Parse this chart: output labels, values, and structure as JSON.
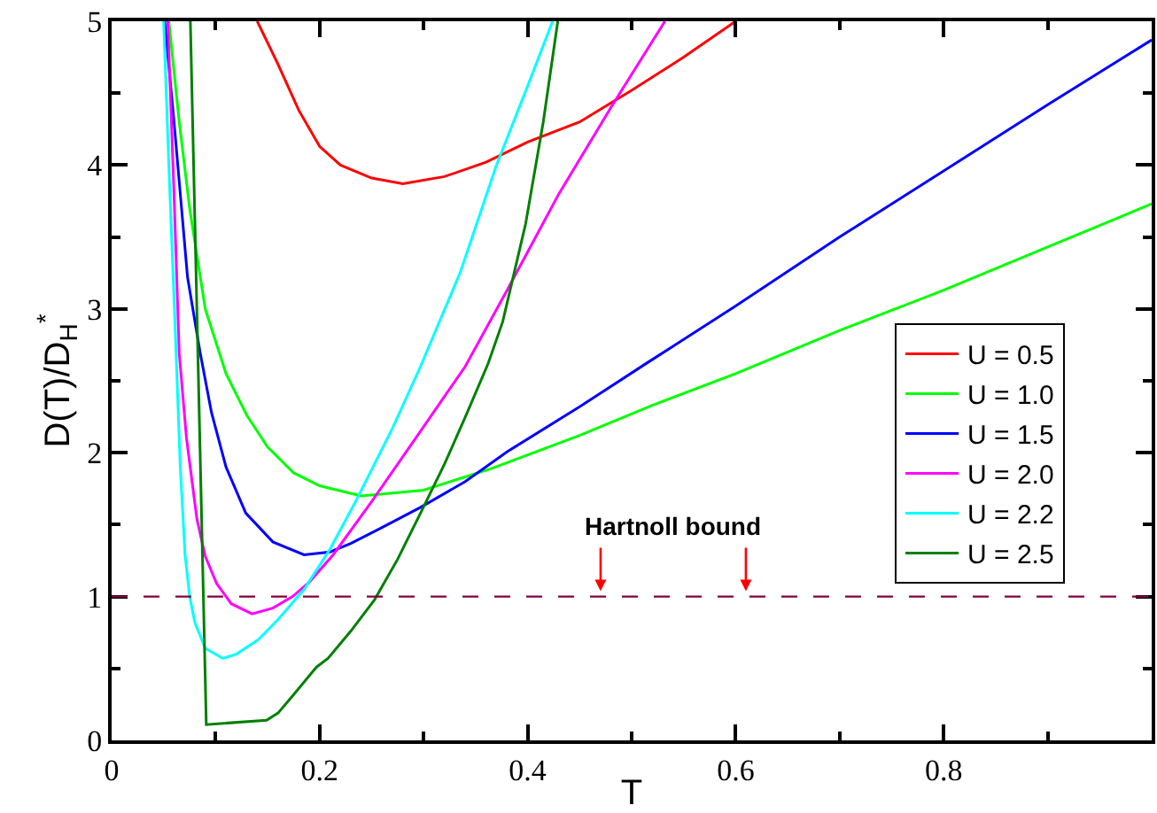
{
  "chart_data": {
    "type": "line",
    "xlabel": "T",
    "ylabel": "D(T)/D$_{H}$$^{*}$",
    "xlim": [
      0,
      1.0
    ],
    "ylim": [
      0,
      5
    ],
    "xticks": [
      0,
      {
        "value": 0.1,
        "label": null
      },
      0.2,
      {
        "value": 0.3,
        "label": null
      },
      0.4,
      {
        "value": 0.5,
        "label": null
      },
      0.6,
      {
        "value": 0.7,
        "label": null
      },
      0.8,
      {
        "value": 0.9,
        "label": null
      }
    ],
    "yticks": [
      0,
      {
        "value": 0.5,
        "label": null
      },
      1,
      {
        "value": 1.5,
        "label": null
      },
      2,
      {
        "value": 2.5,
        "label": null
      },
      3,
      {
        "value": 3.5,
        "label": null
      },
      4,
      {
        "value": 4.5,
        "label": null
      },
      5
    ],
    "grid": false,
    "legend": "right",
    "marker": "none",
    "line_style": "solid",
    "series": [
      {
        "name": "U = 0.5",
        "color": "#ff0000",
        "x": [
          0.14,
          0.16,
          0.18,
          0.2,
          0.22,
          0.25,
          0.28,
          0.32,
          0.36,
          0.4,
          0.45,
          0.5,
          0.55,
          0.6
        ],
        "values": [
          5,
          4.7,
          4.38,
          4.13,
          4.0,
          3.91,
          3.87,
          3.92,
          4.02,
          4.16,
          4.3,
          4.52,
          4.75,
          5.0
        ]
      },
      {
        "name": "U = 1.0",
        "color": "#00ff00",
        "x": [
          0.055,
          0.065,
          0.075,
          0.09,
          0.11,
          0.13,
          0.15,
          0.175,
          0.2,
          0.24,
          0.3,
          0.365,
          0.45,
          0.52,
          0.6,
          0.7,
          0.8,
          0.9,
          1.0
        ],
        "values": [
          5,
          4.3,
          3.7,
          3.0,
          2.55,
          2.26,
          2.04,
          1.86,
          1.77,
          1.7,
          1.74,
          1.89,
          2.12,
          2.33,
          2.55,
          2.85,
          3.13,
          3.43,
          3.73
        ]
      },
      {
        "name": "U = 1.5",
        "color": "#0000ff",
        "x": [
          0.051,
          0.06,
          0.073,
          0.085,
          0.096,
          0.11,
          0.129,
          0.155,
          0.185,
          0.21,
          0.23,
          0.26,
          0.297,
          0.34,
          0.381,
          0.45,
          0.516,
          0.6,
          0.7,
          0.8,
          0.9,
          1.0
        ],
        "values": [
          5,
          4.3,
          3.22,
          2.7,
          2.28,
          1.9,
          1.58,
          1.38,
          1.29,
          1.31,
          1.37,
          1.48,
          1.62,
          1.8,
          2.01,
          2.32,
          2.63,
          3.02,
          3.5,
          3.96,
          4.42,
          4.87
        ]
      },
      {
        "name": "U = 2.0",
        "color": "#ff00ff",
        "x": [
          0.054,
          0.06,
          0.065,
          0.072,
          0.082,
          0.09,
          0.101,
          0.115,
          0.135,
          0.155,
          0.174,
          0.19,
          0.213,
          0.25,
          0.297,
          0.34,
          0.381,
          0.43,
          0.48,
          0.532
        ],
        "values": [
          5,
          3.8,
          2.69,
          2.1,
          1.54,
          1.28,
          1.09,
          0.95,
          0.88,
          0.92,
          1.0,
          1.1,
          1.29,
          1.66,
          2.15,
          2.6,
          3.14,
          3.8,
          4.4,
          5.0
        ]
      },
      {
        "name": "U = 2.2",
        "color": "#00ffff",
        "x": [
          0.05,
          0.055,
          0.062,
          0.066,
          0.0706,
          0.075,
          0.08,
          0.09,
          0.107,
          0.12,
          0.141,
          0.16,
          0.185,
          0.21,
          0.236,
          0.27,
          0.297,
          0.335,
          0.37,
          0.4,
          0.424
        ],
        "values": [
          5,
          4.0,
          2.69,
          1.9,
          1.29,
          1.0,
          0.82,
          0.64,
          0.57,
          0.6,
          0.7,
          0.84,
          1.05,
          1.33,
          1.68,
          2.17,
          2.6,
          3.25,
          4.0,
          4.55,
          5.0
        ]
      },
      {
        "name": "U = 2.5",
        "color": "#008000",
        "x": [
          0.0757,
          0.091,
          0.149,
          0.16,
          0.174,
          0.197,
          0.208,
          0.23,
          0.253,
          0.275,
          0.297,
          0.32,
          0.342,
          0.362,
          0.376,
          0.398,
          0.415,
          0.429
        ],
        "values": [
          5,
          0.11,
          0.14,
          0.19,
          0.31,
          0.51,
          0.57,
          0.76,
          0.98,
          1.26,
          1.58,
          1.92,
          2.28,
          2.62,
          2.91,
          3.59,
          4.3,
          5.0
        ]
      }
    ],
    "ref_lines": [
      {
        "axis": "y",
        "value": 1,
        "color": "#800040",
        "line_style": "dashed"
      }
    ],
    "annotations": [
      {
        "text": "Hartnoll bound",
        "x": 0.54,
        "y": 1
      }
    ]
  }
}
